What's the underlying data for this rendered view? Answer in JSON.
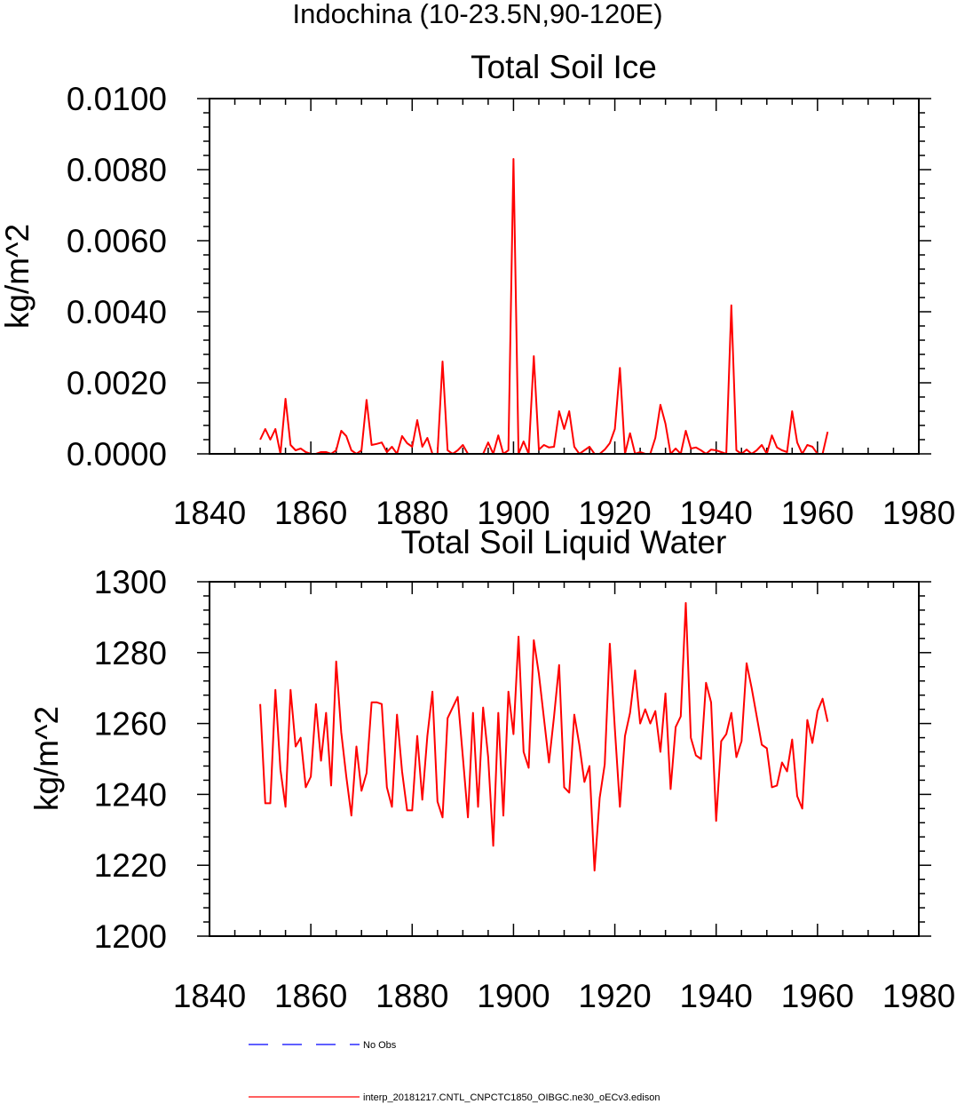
{
  "page_title": "Indochina (10-23.5N,90-120E)",
  "legend": {
    "entries": [
      {
        "label": "No Obs",
        "color": "#0000ff",
        "style": "dashed"
      },
      {
        "label": "interp_20181217.CNTL_CNPCTC1850_OIBGC.ne30_oECv3.edison",
        "color": "#ff0000",
        "style": "solid"
      }
    ]
  },
  "chart_data": [
    {
      "type": "line",
      "title": "Total Soil Ice",
      "xlabel": "",
      "ylabel": "kg/m^2",
      "xlim": [
        1840,
        1980
      ],
      "ylim": [
        0,
        0.01
      ],
      "xticks": [
        1840,
        1860,
        1880,
        1900,
        1920,
        1940,
        1960,
        1980
      ],
      "xtick_labels": [
        "1840",
        "1860",
        "1880",
        "1900",
        "1920",
        "1940",
        "1960",
        "1980"
      ],
      "yticks": [
        0,
        0.002,
        0.004,
        0.006,
        0.008,
        0.01
      ],
      "ytick_labels": [
        "0.0000",
        "0.0020",
        "0.0040",
        "0.0060",
        "0.0080",
        "0.0100"
      ],
      "series": [
        {
          "name": "interp_20181217.CNTL_CNPCTC1850_OIBGC.ne30_oECv3.edison",
          "color": "#ff0000",
          "x": [
            1850,
            1851,
            1852,
            1853,
            1854,
            1855,
            1856,
            1857,
            1858,
            1859,
            1860,
            1861,
            1862,
            1863,
            1864,
            1865,
            1866,
            1867,
            1868,
            1869,
            1870,
            1871,
            1872,
            1873,
            1874,
            1875,
            1876,
            1877,
            1878,
            1879,
            1880,
            1881,
            1882,
            1883,
            1884,
            1885,
            1886,
            1887,
            1888,
            1889,
            1890,
            1891,
            1892,
            1893,
            1894,
            1895,
            1896,
            1897,
            1898,
            1899,
            1900,
            1901,
            1902,
            1903,
            1904,
            1905,
            1906,
            1907,
            1908,
            1909,
            1910,
            1911,
            1912,
            1913,
            1914,
            1915,
            1916,
            1917,
            1918,
            1919,
            1920,
            1921,
            1922,
            1923,
            1924,
            1925,
            1926,
            1927,
            1928,
            1929,
            1930,
            1931,
            1932,
            1933,
            1934,
            1935,
            1936,
            1937,
            1938,
            1939,
            1940,
            1941,
            1942,
            1943,
            1944,
            1945,
            1946,
            1947,
            1948,
            1949,
            1950,
            1951,
            1952,
            1953,
            1954,
            1955,
            1956,
            1957,
            1958,
            1959,
            1960,
            1961,
            1962
          ],
          "y": [
            0.0004,
            0.0007,
            0.0004,
            0.0007,
            0.0,
            0.00155,
            0.00025,
            0.0001,
            0.00015,
            5e-05,
            0.0,
            0.0,
            5e-05,
            5e-05,
            0.0,
            0.0001,
            0.00065,
            0.0005,
            0.0001,
            0.0,
            0.0001,
            0.00152,
            0.00025,
            0.00028,
            0.00032,
            5e-05,
            0.0002,
            0.0,
            0.0005,
            0.0003,
            0.0002,
            0.00095,
            0.0002,
            0.00045,
            0.0,
            0.0,
            0.0026,
            0.0001,
            0.0,
            0.0001,
            0.00025,
            0.0,
            0.0,
            0.0,
            0.0,
            0.00032,
            0.0,
            0.00052,
            0.0,
            0.0001,
            0.0083,
            0.0,
            0.00035,
            0.0,
            0.00275,
            0.00012,
            0.00025,
            0.00018,
            0.0002,
            0.0012,
            0.0007,
            0.0012,
            0.0002,
            0.0,
            0.0001,
            0.0002,
            0.0,
            0.0,
            0.00012,
            0.0003,
            0.0007,
            0.00242,
            0.0,
            0.00058,
            0.0,
            5e-05,
            0.0,
            0.0,
            0.00045,
            0.00138,
            0.00085,
            0.0,
            0.00015,
            0.0,
            0.00065,
            0.00015,
            0.00018,
            0.0001,
            0.0,
            0.00012,
            0.0001,
            5e-05,
            0.0,
            0.00418,
            0.0001,
            0.0,
            0.00012,
            0.0,
            0.0001,
            0.00025,
            0.0,
            0.00052,
            0.00018,
            0.0001,
            5e-05,
            0.0012,
            0.00032,
            0.0,
            0.00025,
            0.0002,
            0.0,
            0.0,
            0.00062
          ]
        }
      ]
    },
    {
      "type": "line",
      "title": "Total Soil Liquid Water",
      "xlabel": "",
      "ylabel": "kg/m^2",
      "xlim": [
        1840,
        1980
      ],
      "ylim": [
        1200,
        1300
      ],
      "xticks": [
        1840,
        1860,
        1880,
        1900,
        1920,
        1940,
        1960,
        1980
      ],
      "xtick_labels": [
        "1840",
        "1860",
        "1880",
        "1900",
        "1920",
        "1940",
        "1960",
        "1980"
      ],
      "yticks": [
        1200,
        1220,
        1240,
        1260,
        1280,
        1300
      ],
      "ytick_labels": [
        "1200",
        "1220",
        "1240",
        "1260",
        "1280",
        "1300"
      ],
      "series": [
        {
          "name": "interp_20181217.CNTL_CNPCTC1850_OIBGC.ne30_oECv3.edison",
          "color": "#ff0000",
          "x": [
            1850,
            1851,
            1852,
            1853,
            1854,
            1855,
            1856,
            1857,
            1858,
            1859,
            1860,
            1861,
            1862,
            1863,
            1864,
            1865,
            1866,
            1867,
            1868,
            1869,
            1870,
            1871,
            1872,
            1873,
            1874,
            1875,
            1876,
            1877,
            1878,
            1879,
            1880,
            1881,
            1882,
            1883,
            1884,
            1885,
            1886,
            1887,
            1888,
            1889,
            1890,
            1891,
            1892,
            1893,
            1894,
            1895,
            1896,
            1897,
            1898,
            1899,
            1900,
            1901,
            1902,
            1903,
            1904,
            1905,
            1906,
            1907,
            1908,
            1909,
            1910,
            1911,
            1912,
            1913,
            1914,
            1915,
            1916,
            1917,
            1918,
            1919,
            1920,
            1921,
            1922,
            1923,
            1924,
            1925,
            1926,
            1927,
            1928,
            1929,
            1930,
            1931,
            1932,
            1933,
            1934,
            1935,
            1936,
            1937,
            1938,
            1939,
            1940,
            1941,
            1942,
            1943,
            1944,
            1945,
            1946,
            1947,
            1948,
            1949,
            1950,
            1951,
            1952,
            1953,
            1954,
            1955,
            1956,
            1957,
            1958,
            1959,
            1960,
            1961,
            1962
          ],
          "y": [
            1265.5,
            1237.5,
            1237.5,
            1269.5,
            1247,
            1236.5,
            1269.5,
            1253.5,
            1256,
            1242,
            1245,
            1265.5,
            1249.5,
            1263,
            1242.5,
            1277.5,
            1257.5,
            1245,
            1234,
            1253.5,
            1241,
            1246,
            1266,
            1266,
            1265.5,
            1242,
            1236.5,
            1262.5,
            1246.5,
            1235.5,
            1235.5,
            1256.5,
            1238.5,
            1256.5,
            1269,
            1238,
            1233.5,
            1261.5,
            1264.5,
            1267.5,
            1250.5,
            1233.5,
            1263,
            1236.5,
            1264.5,
            1250.5,
            1225.5,
            1263,
            1234,
            1269,
            1257,
            1284.5,
            1252,
            1247.5,
            1283.5,
            1274,
            1261.5,
            1249,
            1262,
            1276.5,
            1242,
            1240.5,
            1262.5,
            1254,
            1243.5,
            1248,
            1218.5,
            1239,
            1248.5,
            1282.5,
            1258.5,
            1236.5,
            1256.5,
            1263,
            1275,
            1260,
            1264,
            1260,
            1263.5,
            1252,
            1268.5,
            1241.5,
            1259,
            1262,
            1294,
            1256,
            1251,
            1250,
            1271.5,
            1266,
            1232.5,
            1255,
            1257,
            1263,
            1250.5,
            1255,
            1277,
            1270,
            1262,
            1254,
            1253,
            1242,
            1242.5,
            1249,
            1246.5,
            1255.5,
            1239.5,
            1236,
            1261,
            1254.5,
            1263.5,
            1267,
            1260.5
          ]
        }
      ]
    }
  ]
}
